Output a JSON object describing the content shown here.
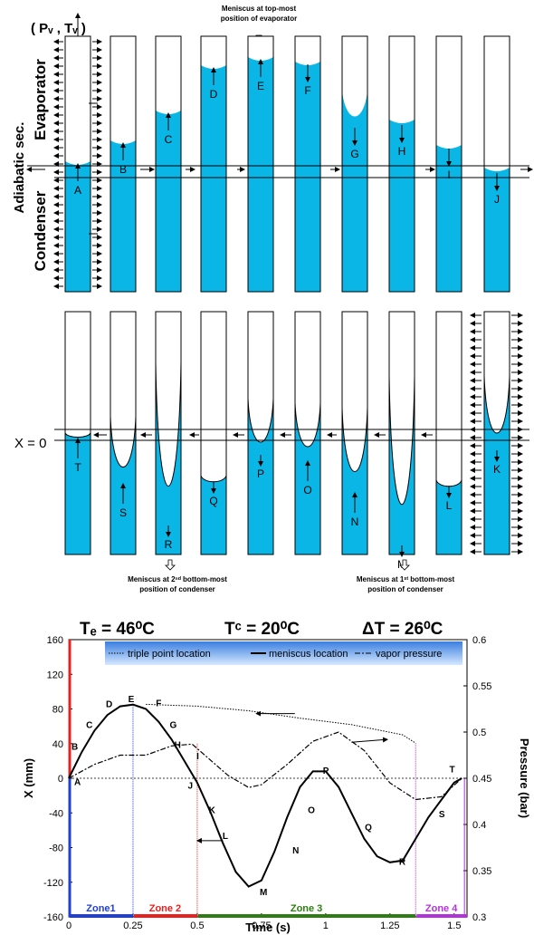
{
  "top_panel": {
    "pv_tv_label": "( Pᵥ , Tᵥ )",
    "evaporator_label": "Evaporator",
    "adiabatic_label": "Adiabatic sec.",
    "condenser_label": "Condenser",
    "annotation_top": [
      "Meniscus at top-most",
      "position of evaporator"
    ],
    "letters": [
      "A",
      "B",
      "C",
      "D",
      "E",
      "F",
      "G",
      "H",
      "I",
      "J"
    ]
  },
  "middle_panel": {
    "x0_label": "X = 0",
    "letters": [
      "T",
      "S",
      "R",
      "Q",
      "P",
      "O",
      "N",
      "M",
      "L",
      "K"
    ],
    "annotation_2nd": [
      "Meniscus at 2ⁿᵈ bottom-most",
      "position of condenser"
    ],
    "annotation_1st": [
      "Meniscus at 1ˢᵗ bottom-most",
      "position of condenser"
    ]
  },
  "params": {
    "te": "Tₑ = 46⁰C",
    "tc": "Tᶜ = 20⁰C",
    "dt": "ΔT = 26⁰C"
  },
  "chart_data": {
    "type": "line",
    "xlabel": "Time (s)",
    "ylabel": "X (mm)",
    "y2label": "Pressure (bar)",
    "xlim": [
      0,
      1.55
    ],
    "ylim": [
      -160,
      160
    ],
    "y2lim": [
      0.3,
      0.6
    ],
    "xticks": [
      "0",
      "0.25",
      "0.5",
      "0.75",
      "1",
      "1.25",
      "1.5"
    ],
    "yticks": [
      "160",
      "120",
      "80",
      "40",
      "0",
      "-40",
      "-80",
      "-120",
      "-160"
    ],
    "y2ticks": [
      "0.6",
      "0.55",
      "0.5",
      "0.45",
      "0.4",
      "0.35",
      "0.3"
    ],
    "legend": [
      "triple point location",
      "meniscus location",
      "vapor pressure"
    ],
    "zones": [
      "Zone1",
      "Zone 2",
      "Zone 3",
      "Zone 4"
    ],
    "zone_colors": [
      "#1f3fd6",
      "#e8211f",
      "#2e7d12",
      "#b233d9"
    ],
    "series": [
      {
        "name": "meniscus location",
        "x": [
          0,
          0.05,
          0.1,
          0.15,
          0.2,
          0.25,
          0.3,
          0.35,
          0.4,
          0.45,
          0.5,
          0.55,
          0.6,
          0.65,
          0.7,
          0.75,
          0.8,
          0.85,
          0.9,
          0.95,
          1.0,
          1.05,
          1.1,
          1.15,
          1.2,
          1.25,
          1.3,
          1.35,
          1.4,
          1.45,
          1.5,
          1.53
        ],
        "y": [
          0,
          30,
          55,
          73,
          83,
          85,
          80,
          65,
          45,
          20,
          -5,
          -38,
          -75,
          -108,
          -125,
          -118,
          -85,
          -45,
          -10,
          8,
          8,
          -10,
          -40,
          -70,
          -90,
          -97,
          -95,
          -70,
          -45,
          -25,
          -5,
          0
        ]
      },
      {
        "name": "triple point location",
        "x": [
          0.3,
          0.5,
          0.7,
          0.9,
          1.1,
          1.3,
          1.35
        ],
        "y": [
          0.53,
          0.528,
          0.523,
          0.515,
          0.508,
          0.497,
          0.488
        ]
      },
      {
        "name": "vapor pressure",
        "x": [
          0,
          0.1,
          0.2,
          0.3,
          0.4,
          0.48,
          0.55,
          0.62,
          0.7,
          0.75,
          0.85,
          0.95,
          1.05,
          1.15,
          1.25,
          1.35,
          1.45,
          1.53
        ],
        "y": [
          0.45,
          0.465,
          0.475,
          0.475,
          0.485,
          0.487,
          0.47,
          0.453,
          0.44,
          0.443,
          0.465,
          0.49,
          0.5,
          0.48,
          0.445,
          0.427,
          0.43,
          0.45
        ]
      }
    ],
    "point_labels": [
      "A",
      "B",
      "C",
      "D",
      "E",
      "F",
      "G",
      "H",
      "I",
      "J",
      "K",
      "L",
      "M",
      "N",
      "O",
      "P",
      "Q",
      "R",
      "S",
      "T"
    ]
  }
}
